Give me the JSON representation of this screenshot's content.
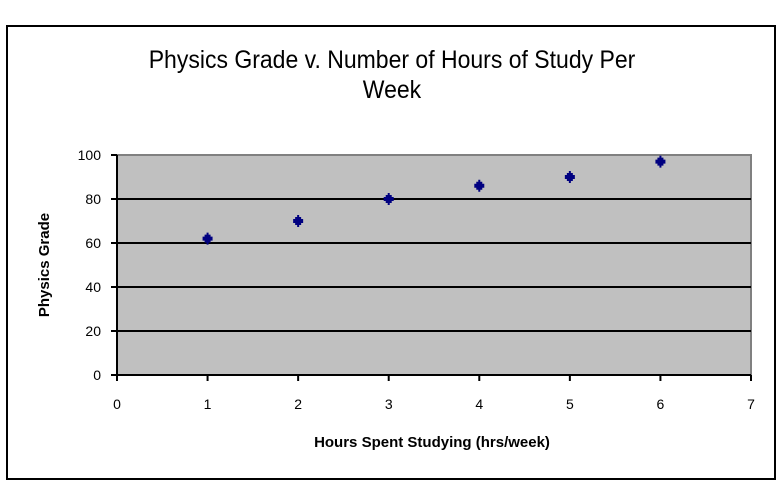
{
  "chart_data": {
    "type": "scatter",
    "title": "Physics Grade v. Number of Hours of Study Per Week",
    "title_lines": [
      "Physics Grade v. Number of Hours of Study Per",
      "Week"
    ],
    "xlabel": "Hours Spent Studying (hrs/week)",
    "ylabel": "Physics Grade",
    "xlim": [
      0,
      7
    ],
    "ylim": [
      0,
      100
    ],
    "x_ticks": [
      0,
      1,
      2,
      3,
      4,
      5,
      6,
      7
    ],
    "y_ticks": [
      0,
      20,
      40,
      60,
      80,
      100
    ],
    "grid": "horizontal major gridlines",
    "legend": "none",
    "plot_background": "#c0c0c0",
    "marker_color": "#000080",
    "series": [
      {
        "name": "Physics Grade",
        "x": [
          1,
          2,
          3,
          4,
          5,
          6
        ],
        "y": [
          62,
          70,
          80,
          86,
          90,
          97
        ]
      }
    ]
  }
}
